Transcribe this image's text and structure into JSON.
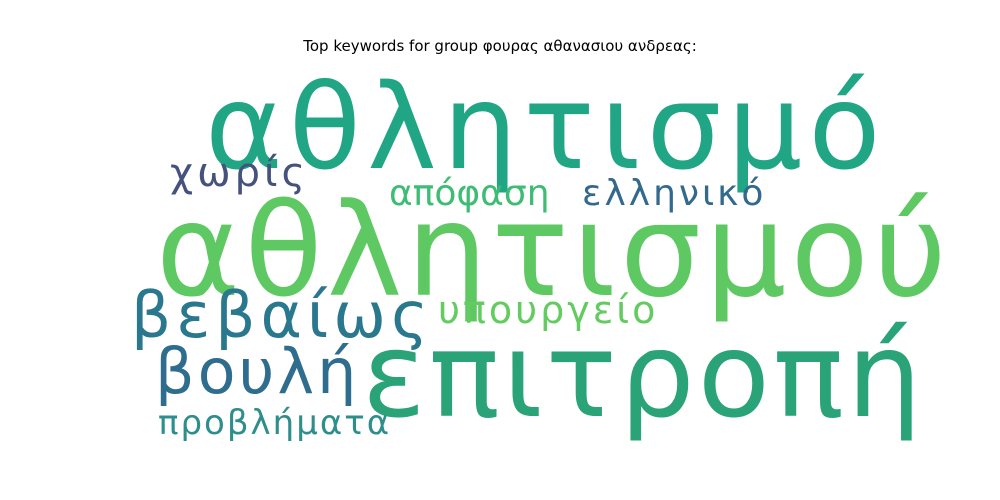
{
  "title": "Top keywords for group φουρας αθανασιου ανδρεας:",
  "words": [
    {
      "text": "αθλητισμό",
      "color": "#21a685"
    },
    {
      "text": "χωρίς",
      "color": "#46527e"
    },
    {
      "text": "απόφαση",
      "color": "#3dbc74"
    },
    {
      "text": "ελληνικό",
      "color": "#33698c"
    },
    {
      "text": "αθλητισμού",
      "color": "#5ec962"
    },
    {
      "text": "βεβαίως",
      "color": "#2a788e"
    },
    {
      "text": "υπουργείο",
      "color": "#63cb5f"
    },
    {
      "text": "βουλή",
      "color": "#2f6d8e"
    },
    {
      "text": "επιτροπή",
      "color": "#2aa379"
    },
    {
      "text": "προβλήματα",
      "color": "#2d8e8c"
    }
  ]
}
